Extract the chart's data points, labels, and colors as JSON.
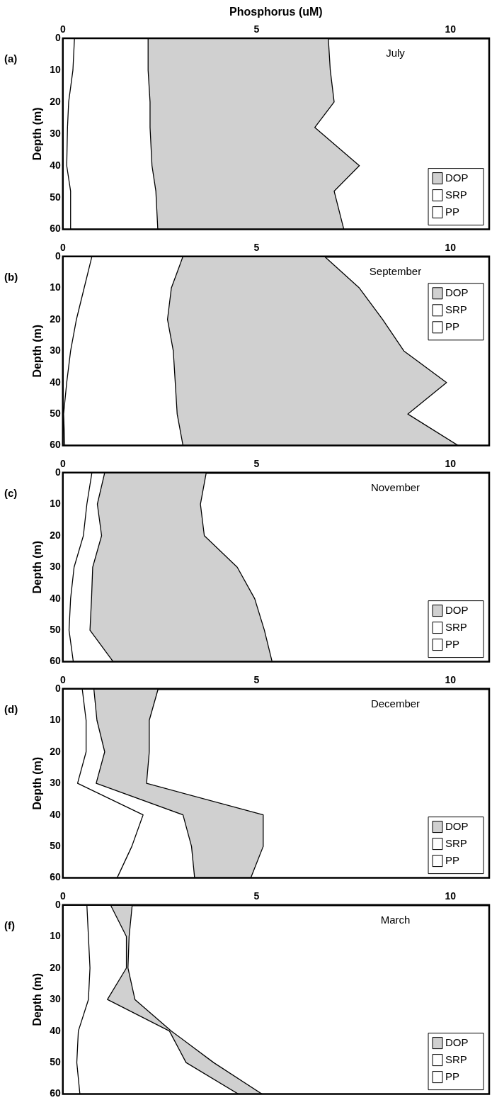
{
  "chart_data": [
    {
      "type": "area",
      "title": "July",
      "xlabel": "Phosphorus (uM)",
      "ylabel": "Depth (m)",
      "annotations": [
        "(a)"
      ],
      "orientation": "horizontal",
      "stacked": true,
      "legend": "bottom right",
      "x": [
        0,
        10,
        20,
        28,
        40,
        48,
        60
      ],
      "xlim": [
        0,
        11
      ],
      "xticks": [
        0,
        5,
        10
      ],
      "ylim": [
        60,
        0
      ],
      "yticks": [
        0,
        10,
        20,
        30,
        40,
        50,
        60
      ],
      "series": [
        {
          "name": "PP",
          "color": "#ffffff",
          "values": [
            0.3,
            0.26,
            0.15,
            0.12,
            0.1,
            0.2,
            0.2
          ]
        },
        {
          "name": "SRP",
          "color": "#ffffff",
          "values": [
            1.9,
            1.94,
            2.1,
            2.13,
            2.2,
            2.2,
            2.25
          ]
        },
        {
          "name": "DOP",
          "color": "#d0d0d0",
          "values": [
            4.65,
            4.7,
            4.75,
            4.25,
            5.35,
            4.6,
            4.8
          ]
        }
      ]
    },
    {
      "type": "area",
      "title": "September",
      "ylabel": "Depth (m)",
      "annotations": [
        "(b)"
      ],
      "orientation": "horizontal",
      "stacked": true,
      "legend": "top right",
      "x": [
        0,
        10,
        20,
        30,
        40,
        50,
        60
      ],
      "xlim": [
        0,
        11
      ],
      "xticks": [
        0,
        5,
        10
      ],
      "ylim": [
        60,
        0
      ],
      "yticks": [
        0,
        10,
        20,
        30,
        40,
        50,
        60
      ],
      "series": [
        {
          "name": "PP",
          "color": "#ffffff",
          "values": [
            0.75,
            0.55,
            0.35,
            0.2,
            0.1,
            0.02,
            0.05
          ]
        },
        {
          "name": "SRP",
          "color": "#ffffff",
          "values": [
            2.35,
            2.25,
            2.35,
            2.65,
            2.8,
            2.93,
            3.05
          ]
        },
        {
          "name": "DOP",
          "color": "#d0d0d0",
          "values": [
            3.65,
            4.85,
            5.55,
            5.95,
            7.0,
            5.95,
            7.1
          ]
        }
      ]
    },
    {
      "type": "area",
      "title": "November",
      "ylabel": "Depth (m)",
      "annotations": [
        "(c)"
      ],
      "orientation": "horizontal",
      "stacked": true,
      "legend": "bottom right",
      "x": [
        0,
        10,
        20,
        30,
        40,
        50,
        60
      ],
      "xlim": [
        0,
        11
      ],
      "xticks": [
        0,
        5,
        10
      ],
      "ylim": [
        60,
        0
      ],
      "yticks": [
        0,
        10,
        20,
        30,
        40,
        50,
        60
      ],
      "series": [
        {
          "name": "PP",
          "color": "#ffffff",
          "values": [
            0.75,
            0.62,
            0.53,
            0.29,
            0.2,
            0.16,
            0.27
          ]
        },
        {
          "name": "SRP",
          "color": "#ffffff",
          "values": [
            0.33,
            0.27,
            0.47,
            0.48,
            0.54,
            0.54,
            1.03
          ]
        },
        {
          "name": "DOP",
          "color": "#d0d0d0",
          "values": [
            2.62,
            2.66,
            2.65,
            3.73,
            4.21,
            4.5,
            4.1
          ]
        }
      ]
    },
    {
      "type": "area",
      "title": "December",
      "ylabel": "Depth (m)",
      "annotations": [
        "(d)"
      ],
      "orientation": "horizontal",
      "stacked": true,
      "legend": "bottom right",
      "x": [
        0,
        10,
        20,
        30,
        40,
        50,
        60
      ],
      "xlim": [
        0,
        11
      ],
      "xticks": [
        0,
        5,
        10
      ],
      "ylim": [
        60,
        0
      ],
      "yticks": [
        0,
        10,
        20,
        30,
        40,
        50,
        60
      ],
      "series": [
        {
          "name": "PP",
          "color": "#ffffff",
          "values": [
            0.5,
            0.6,
            0.6,
            0.38,
            2.07,
            1.78,
            1.4
          ]
        },
        {
          "name": "SRP",
          "color": "#ffffff",
          "values": [
            0.3,
            0.28,
            0.48,
            0.48,
            1.03,
            1.54,
            2.0
          ]
        },
        {
          "name": "DOP",
          "color": "#d0d0d0",
          "values": [
            1.66,
            1.35,
            1.15,
            1.3,
            2.07,
            1.85,
            1.45
          ]
        }
      ]
    },
    {
      "type": "area",
      "title": "March",
      "ylabel": "Depth (m)",
      "annotations": [
        "(f)"
      ],
      "orientation": "horizontal",
      "stacked": true,
      "legend": "bottom right",
      "x": [
        0,
        10,
        20,
        30,
        40,
        50,
        60
      ],
      "xlim": [
        0,
        11
      ],
      "xticks": [
        0,
        5,
        10
      ],
      "ylim": [
        60,
        0
      ],
      "yticks": [
        0,
        10,
        20,
        30,
        40,
        50,
        60
      ],
      "series": [
        {
          "name": "PP",
          "color": "#ffffff",
          "values": [
            0.62,
            0.66,
            0.7,
            0.66,
            0.4,
            0.36,
            0.44
          ]
        },
        {
          "name": "SRP",
          "color": "#ffffff",
          "values": [
            0.61,
            0.98,
            0.94,
            0.49,
            2.35,
            2.82,
            4.09
          ]
        },
        {
          "name": "DOP",
          "color": "#d0d0d0",
          "values": [
            0.56,
            0.07,
            0.04,
            0.71,
            0.05,
            0.71,
            0.61
          ]
        }
      ]
    }
  ]
}
